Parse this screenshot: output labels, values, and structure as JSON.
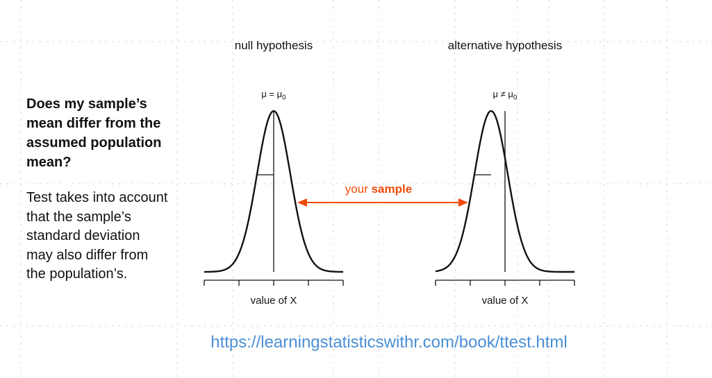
{
  "question": [
    "Does my sample’s",
    "mean differ from the",
    "assumed population",
    "mean?"
  ],
  "note": [
    "Test takes into account",
    "that the sample’s",
    "standard deviation",
    "may also differ from",
    "the population’s."
  ],
  "panels": [
    {
      "title": "null hypothesis",
      "symbol_lhs": "μ = μ",
      "symbol_sub": "0",
      "xlabel": "value of X"
    },
    {
      "title": "alternative hypothesis",
      "symbol_lhs": "μ ≠ μ",
      "symbol_sub": "0",
      "xlabel": "value of X"
    }
  ],
  "sample_label": {
    "prefix": "your ",
    "bold": "sample"
  },
  "url": "https://learningstatisticswithr.com/book/ttest.html",
  "colors": {
    "accent": "#f04a0a",
    "link": "#4a8fd6",
    "grid": "#c8c8c8",
    "ink": "#111111"
  }
}
